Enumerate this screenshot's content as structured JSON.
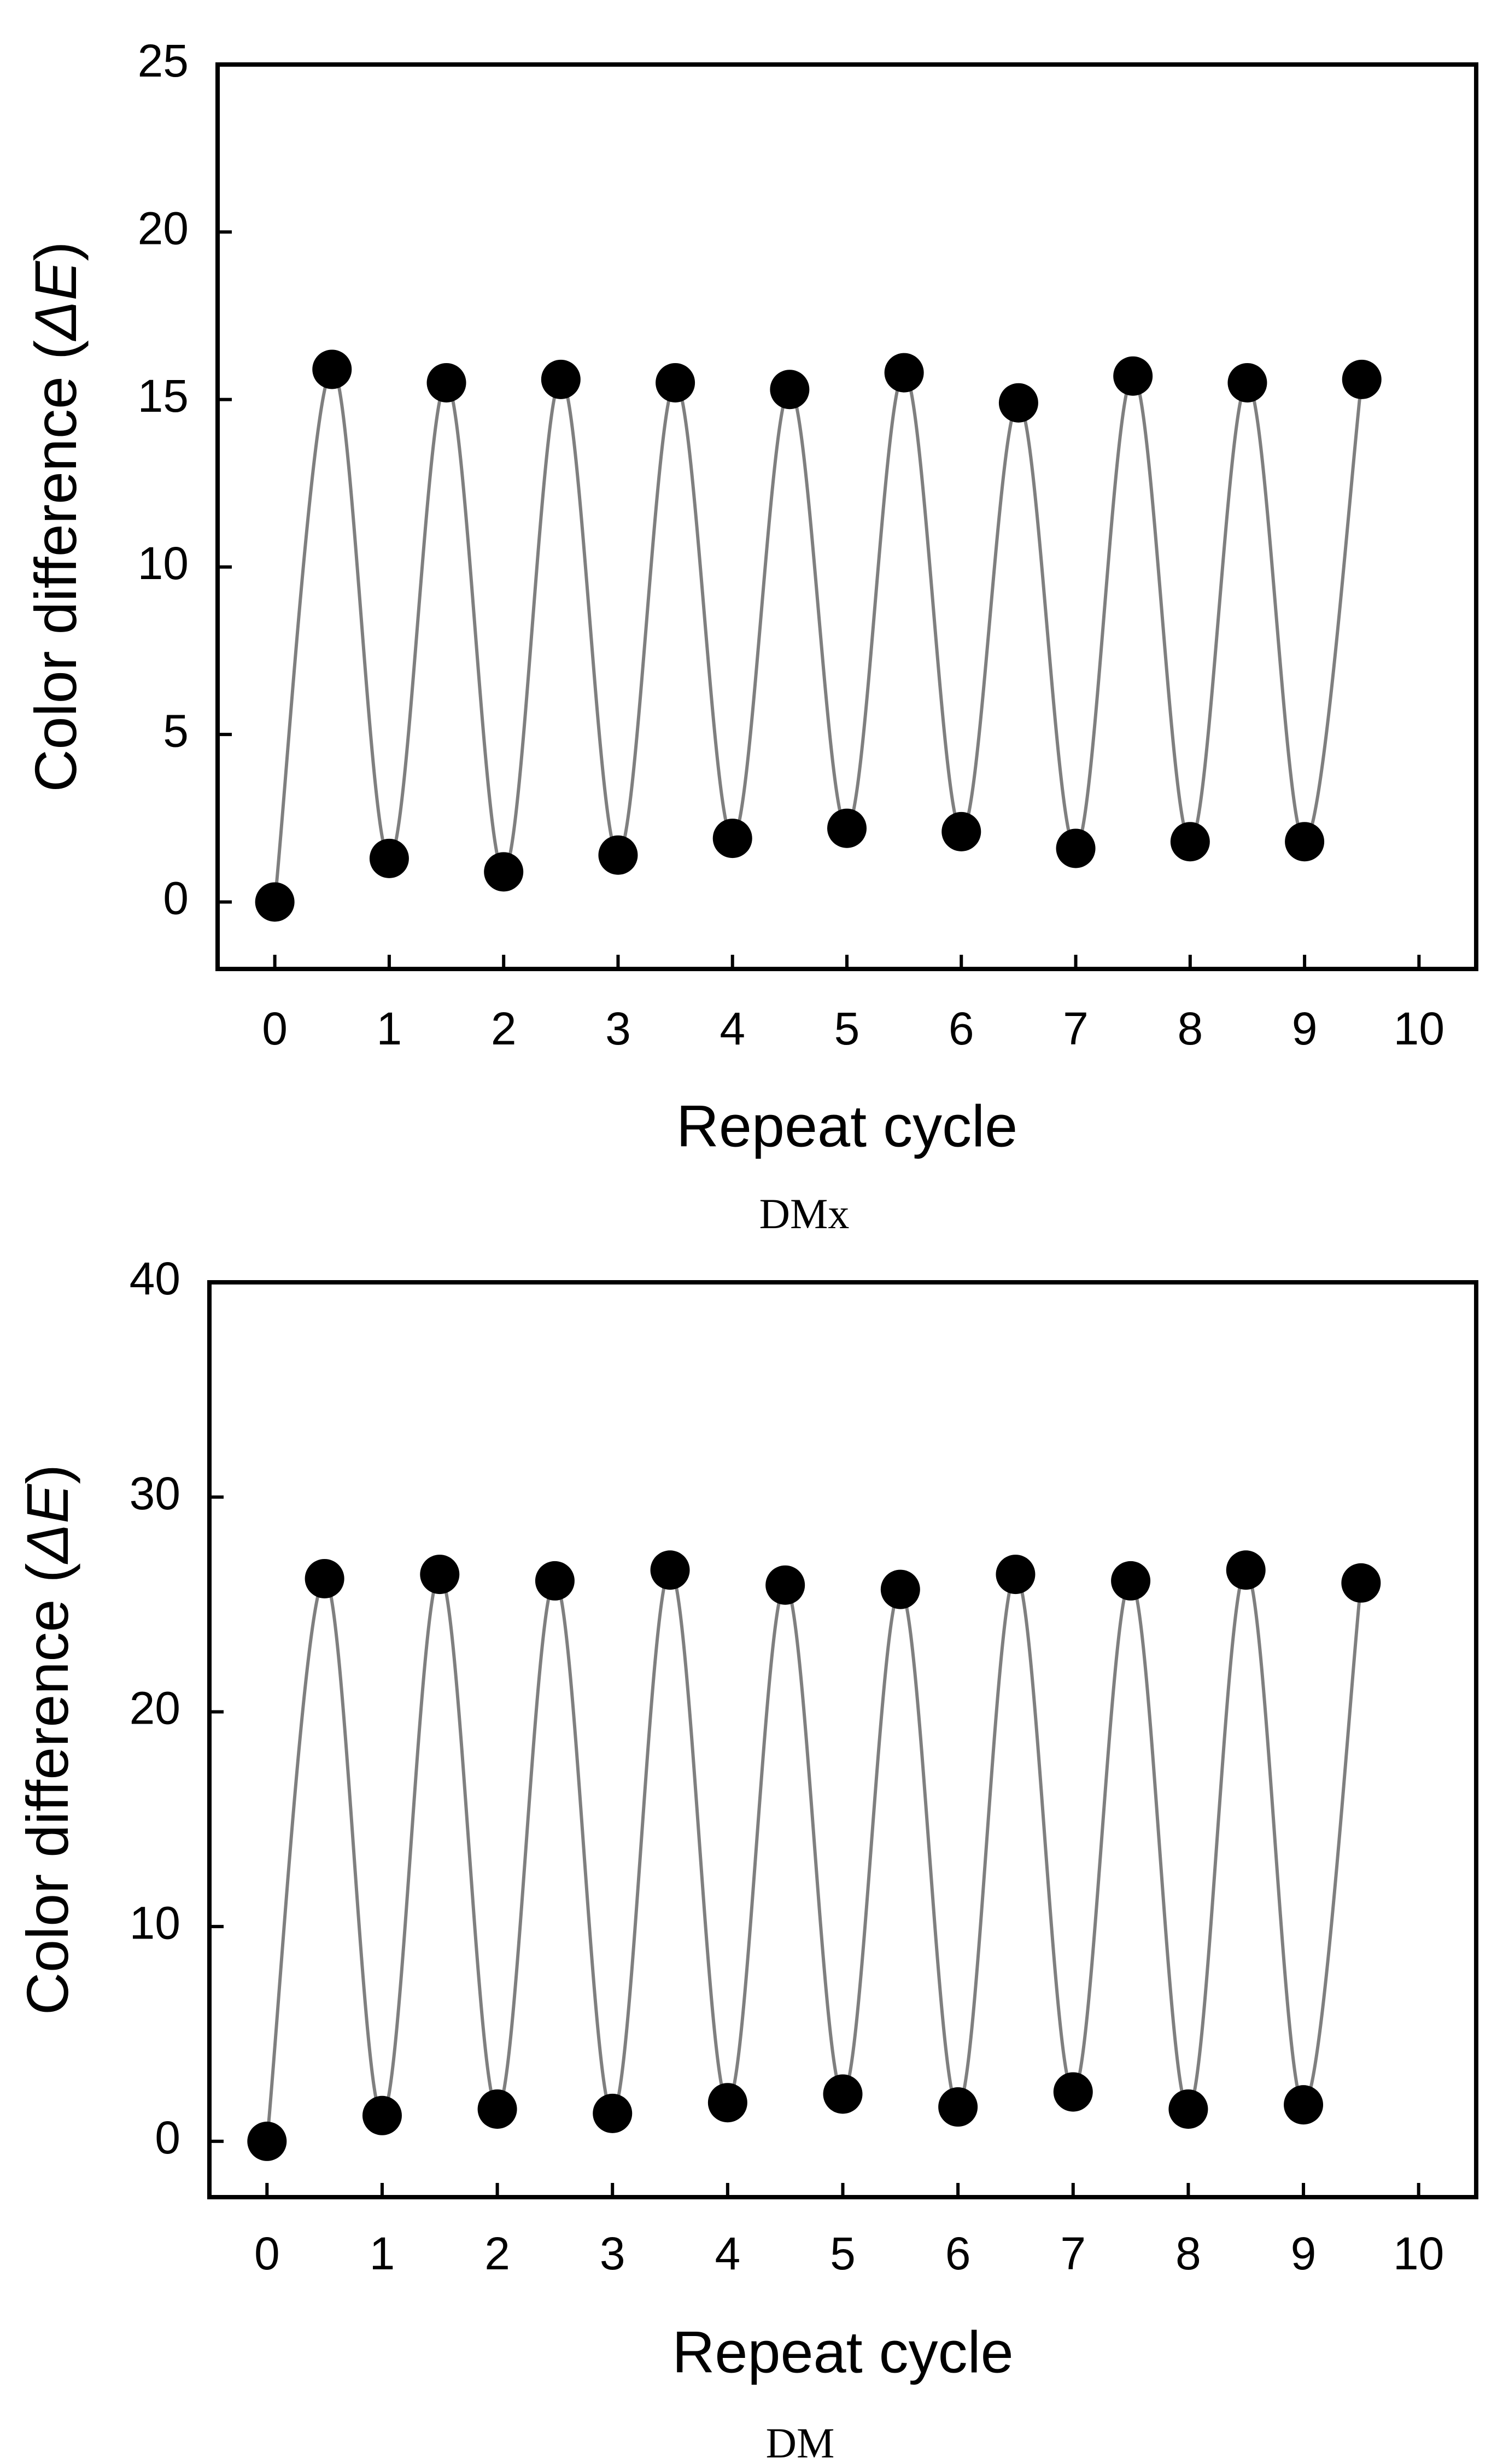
{
  "colors": {
    "frame": "#000000",
    "line": "#7f7f7f",
    "marker": "#000000",
    "background": "#ffffff"
  },
  "chart_data": [
    {
      "type": "line",
      "caption": "DMx",
      "xlabel": "Repeat cycle",
      "ylabel_prefix": "Color difference (",
      "ylabel_symbol": "ΔE",
      "ylabel_suffix": ")",
      "xlim": [
        -0.5,
        10.5
      ],
      "ylim": [
        -2,
        25
      ],
      "xticks": [
        0,
        1,
        2,
        3,
        4,
        5,
        6,
        7,
        8,
        9,
        10
      ],
      "yticks": [
        0,
        5,
        10,
        15,
        20,
        25
      ],
      "marker": "filled-circle",
      "series": [
        {
          "name": "DMx",
          "x": [
            0,
            0.5,
            1,
            1.5,
            2,
            2.5,
            3,
            3.5,
            4,
            4.5,
            5,
            5.5,
            6,
            6.5,
            7,
            7.5,
            8,
            8.5,
            9,
            9.5
          ],
          "y": [
            0,
            15.9,
            1.3,
            15.5,
            0.9,
            15.6,
            1.4,
            15.5,
            1.9,
            15.3,
            2.2,
            15.8,
            2.1,
            14.9,
            1.6,
            15.7,
            1.8,
            15.5,
            1.8,
            15.6
          ]
        }
      ]
    },
    {
      "type": "line",
      "caption": "DM",
      "xlabel": "Repeat cycle",
      "ylabel_prefix": "Color difference (",
      "ylabel_symbol": "ΔE",
      "ylabel_suffix": ")",
      "xlim": [
        -0.5,
        10.5
      ],
      "ylim": [
        -2.6,
        40
      ],
      "xticks": [
        0,
        1,
        2,
        3,
        4,
        5,
        6,
        7,
        8,
        9,
        10
      ],
      "yticks": [
        0,
        10,
        20,
        30,
        40
      ],
      "marker": "filled-circle",
      "series": [
        {
          "name": "DM",
          "x": [
            0,
            0.5,
            1,
            1.5,
            2,
            2.5,
            3,
            3.5,
            4,
            4.5,
            5,
            5.5,
            6,
            6.5,
            7,
            7.5,
            8,
            8.5,
            9,
            9.5
          ],
          "y": [
            0,
            26.2,
            1.2,
            26.4,
            1.5,
            26.1,
            1.3,
            26.6,
            1.8,
            25.9,
            2.2,
            25.7,
            1.6,
            26.4,
            2.3,
            26.1,
            1.5,
            26.6,
            1.7,
            26.0
          ]
        }
      ]
    }
  ]
}
